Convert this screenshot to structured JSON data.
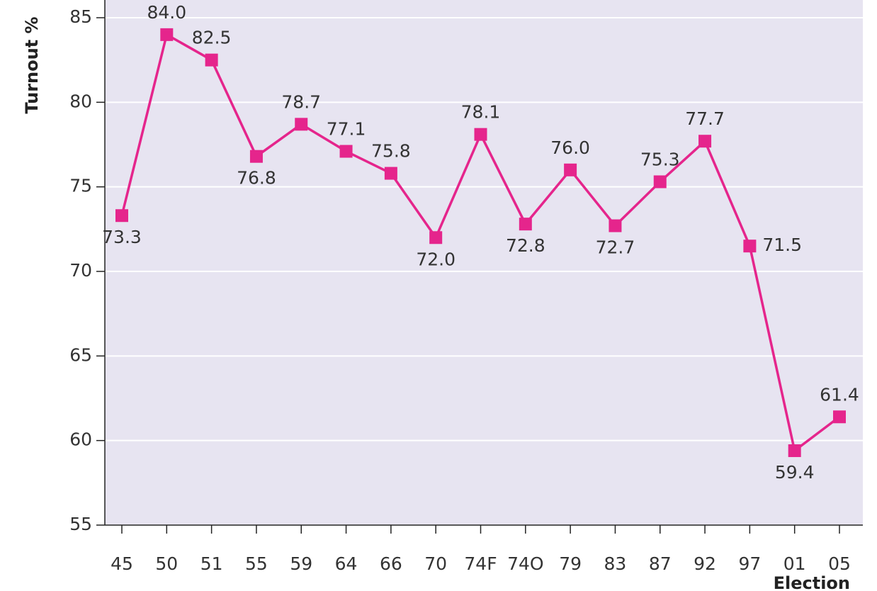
{
  "chart_data": {
    "type": "line",
    "y_label": "Turnout %",
    "x_label": "Election",
    "categories": [
      "45",
      "50",
      "51",
      "55",
      "59",
      "64",
      "66",
      "70",
      "74F",
      "74O",
      "79",
      "83",
      "87",
      "92",
      "97",
      "01",
      "05"
    ],
    "series": [
      {
        "color": "#e5258c",
        "values": [
          73.3,
          84.0,
          82.5,
          76.8,
          78.7,
          77.1,
          75.8,
          72.0,
          78.1,
          72.8,
          76.0,
          72.7,
          75.3,
          77.7,
          71.5,
          59.4,
          61.4
        ],
        "value_labels": [
          "73.3",
          "84.0",
          "82.5",
          "76.8",
          "78.7",
          "77.1",
          "75.8",
          "72.0",
          "78.1",
          "72.8",
          "76.0",
          "72.7",
          "75.3",
          "77.7",
          "71.5",
          "59.4",
          "61.4"
        ]
      }
    ],
    "ylim": [
      55,
      85
    ],
    "yticks": [
      55,
      60,
      65,
      70,
      75,
      80,
      85
    ],
    "grid": true,
    "background": "#e7e4f1"
  }
}
